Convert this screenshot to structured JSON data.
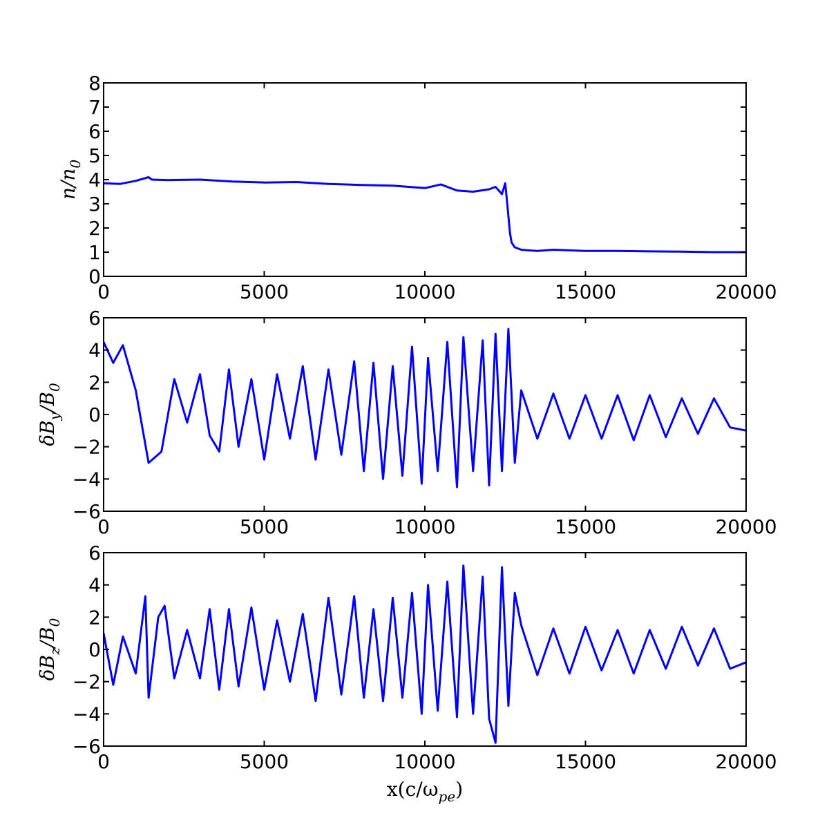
{
  "figure": {
    "xlabel_main": "x(c/ω",
    "xlabel_sub": "pe",
    "xlabel_close": ")"
  },
  "colors": {
    "line": "#0000ff",
    "axes": "#000000",
    "background": "#ffffff"
  },
  "chart_data": [
    {
      "type": "line",
      "ylabel_main": "n/n",
      "ylabel_sub": "0",
      "xlim": [
        0,
        20000
      ],
      "ylim": [
        0,
        8
      ],
      "xticks": [
        "0",
        "5000",
        "10000",
        "15000",
        "20000"
      ],
      "yticks": [
        "0",
        "1",
        "2",
        "3",
        "4",
        "5",
        "6",
        "7",
        "8"
      ],
      "grid": false,
      "series": [
        {
          "x": [
            0,
            500,
            1000,
            1400,
            1500,
            2000,
            3000,
            4000,
            5000,
            6000,
            7000,
            8000,
            9000,
            10000,
            10500,
            11000,
            11500,
            12000,
            12200,
            12400,
            12500,
            12550,
            12600,
            12650,
            12700,
            12800,
            13000,
            13500,
            14000,
            15000,
            16000,
            17000,
            18000,
            19000,
            20000
          ],
          "values": [
            3.85,
            3.82,
            3.95,
            4.1,
            4.0,
            3.98,
            4.0,
            3.92,
            3.88,
            3.9,
            3.82,
            3.78,
            3.75,
            3.65,
            3.8,
            3.55,
            3.5,
            3.6,
            3.7,
            3.4,
            3.85,
            3.2,
            2.5,
            1.8,
            1.4,
            1.2,
            1.1,
            1.05,
            1.1,
            1.05,
            1.05,
            1.03,
            1.02,
            1.0,
            1.0
          ]
        }
      ]
    },
    {
      "type": "line",
      "ylabel_main": "δB",
      "ylabel_sub": "y",
      "ylabel_tail": "/B",
      "ylabel_sub2": "0",
      "xlim": [
        0,
        20000
      ],
      "ylim": [
        -6,
        6
      ],
      "xticks": [
        "0",
        "5000",
        "10000",
        "15000",
        "20000"
      ],
      "yticks": [
        "−6",
        "−4",
        "−2",
        "0",
        "2",
        "4",
        "6"
      ],
      "grid": false,
      "series": [
        {
          "x": [
            0,
            300,
            600,
            1000,
            1400,
            1800,
            2200,
            2600,
            3000,
            3300,
            3600,
            3900,
            4200,
            4600,
            5000,
            5400,
            5800,
            6200,
            6600,
            7000,
            7400,
            7800,
            8100,
            8400,
            8700,
            9000,
            9300,
            9600,
            9900,
            10100,
            10400,
            10700,
            11000,
            11200,
            11500,
            11800,
            12000,
            12200,
            12400,
            12600,
            12800,
            13000,
            13500,
            14000,
            14500,
            15000,
            15500,
            16000,
            16500,
            17000,
            17500,
            18000,
            18500,
            19000,
            19500,
            20000
          ],
          "values": [
            4.5,
            3.2,
            4.3,
            1.5,
            -3.0,
            -2.3,
            2.2,
            -0.5,
            2.5,
            -1.3,
            -2.3,
            2.8,
            -2.0,
            2.2,
            -2.8,
            2.5,
            -1.5,
            3.0,
            -2.8,
            2.8,
            -2.5,
            3.3,
            -3.5,
            3.2,
            -4.0,
            3.0,
            -3.8,
            4.2,
            -4.3,
            3.5,
            -3.5,
            4.5,
            -4.5,
            4.8,
            -3.5,
            4.6,
            -4.4,
            5.0,
            -3.5,
            5.3,
            -3.0,
            1.5,
            -1.5,
            1.3,
            -1.5,
            1.2,
            -1.5,
            1.2,
            -1.6,
            1.2,
            -1.4,
            1.0,
            -1.2,
            1.0,
            -0.8,
            -1.0
          ]
        }
      ]
    },
    {
      "type": "line",
      "ylabel_main": "δB",
      "ylabel_sub": "z",
      "ylabel_tail": "/B",
      "ylabel_sub2": "0",
      "xlim": [
        0,
        20000
      ],
      "ylim": [
        -6,
        6
      ],
      "xticks": [
        "0",
        "5000",
        "10000",
        "15000",
        "20000"
      ],
      "yticks": [
        "−6",
        "−4",
        "−2",
        "0",
        "2",
        "4",
        "6"
      ],
      "grid": false,
      "series": [
        {
          "x": [
            0,
            300,
            600,
            1000,
            1300,
            1400,
            1700,
            1900,
            2200,
            2600,
            3000,
            3300,
            3600,
            3900,
            4200,
            4600,
            5000,
            5400,
            5800,
            6200,
            6600,
            7000,
            7400,
            7800,
            8100,
            8400,
            8700,
            9000,
            9300,
            9600,
            9900,
            10100,
            10400,
            10700,
            11000,
            11200,
            11500,
            11800,
            12000,
            12200,
            12400,
            12600,
            12800,
            13000,
            13500,
            14000,
            14500,
            15000,
            15500,
            16000,
            16500,
            17000,
            17500,
            18000,
            18500,
            19000,
            19500,
            20000
          ],
          "values": [
            1.0,
            -2.2,
            0.8,
            -1.5,
            3.3,
            -3.0,
            2.0,
            2.7,
            -1.8,
            1.2,
            -1.8,
            2.5,
            -2.5,
            2.5,
            -2.3,
            2.6,
            -2.5,
            1.8,
            -2.0,
            2.2,
            -3.2,
            3.2,
            -2.8,
            3.3,
            -3.0,
            2.5,
            -3.2,
            3.2,
            -3.0,
            3.5,
            -4.0,
            4.0,
            -3.8,
            4.2,
            -4.2,
            5.2,
            -4.0,
            4.5,
            -4.3,
            -5.8,
            5.1,
            -3.5,
            3.5,
            1.5,
            -1.6,
            1.3,
            -1.5,
            1.4,
            -1.3,
            1.2,
            -1.5,
            1.2,
            -1.2,
            1.4,
            -1.0,
            1.3,
            -1.2,
            -0.8
          ]
        }
      ]
    }
  ]
}
